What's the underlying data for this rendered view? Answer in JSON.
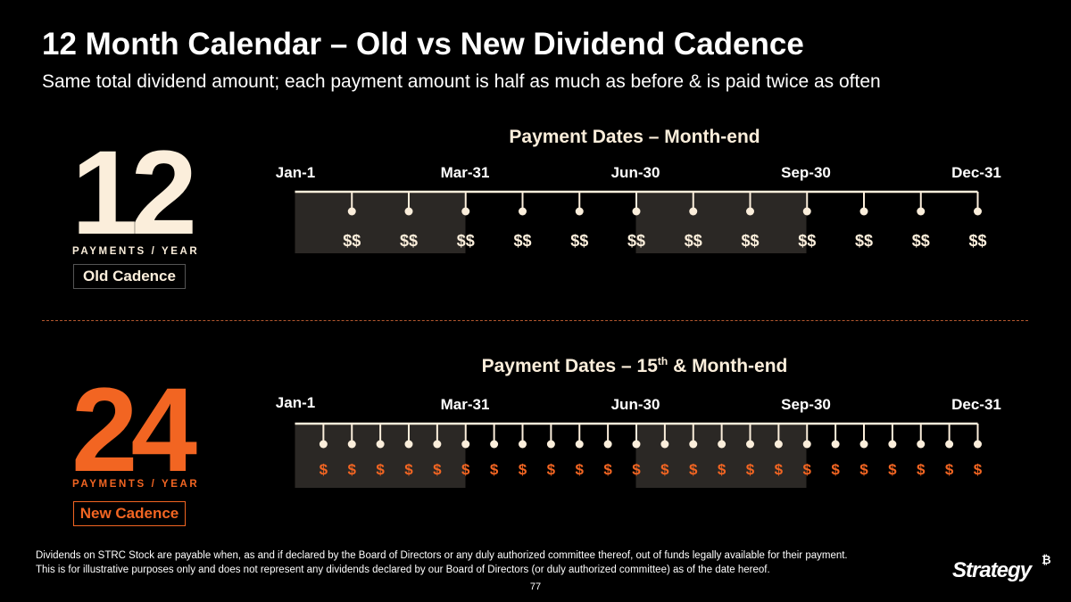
{
  "title": "12 Month Calendar – Old vs New Dividend Cadence",
  "subtitle": "Same total dividend amount; each payment amount is half as much as before & is paid twice as often",
  "colors": {
    "cream": "#fbeedb",
    "orange": "#f26522",
    "shade": "#2b2825",
    "divider": "#b4582f"
  },
  "old": {
    "count": "12",
    "per_year": "PAYMENTS / YEAR",
    "cadence": "Old Cadence",
    "heading": "Payment Dates – Month-end",
    "dates": [
      "Jan-1",
      "Mar-31",
      "Jun-30",
      "Sep-30",
      "Dec-31"
    ],
    "payment_symbol": "$$",
    "payments_per_year": 12
  },
  "new": {
    "count": "24",
    "per_year": "PAYMENTS / YEAR",
    "cadence": "New Cadence",
    "heading_main": "Payment Dates – 15",
    "heading_sup": "th",
    "heading_tail": " & Month-end",
    "dates": [
      "Jan-1",
      "Mar-31",
      "Jun-30",
      "Sep-30",
      "Dec-31"
    ],
    "payment_symbol": "$",
    "payments_per_year": 24
  },
  "footnotes": [
    "Dividends on STRC Stock are payable when, as and if declared by the Board of Directors or any duly authorized committee thereof, out of funds legally available for their payment.",
    "This is for illustrative purposes only and does not represent any dividends declared by our Board of Directors (or duly authorized committee) as of the date hereof."
  ],
  "page_number": "77",
  "logo": {
    "text": "Strategy",
    "mark": "₿"
  }
}
